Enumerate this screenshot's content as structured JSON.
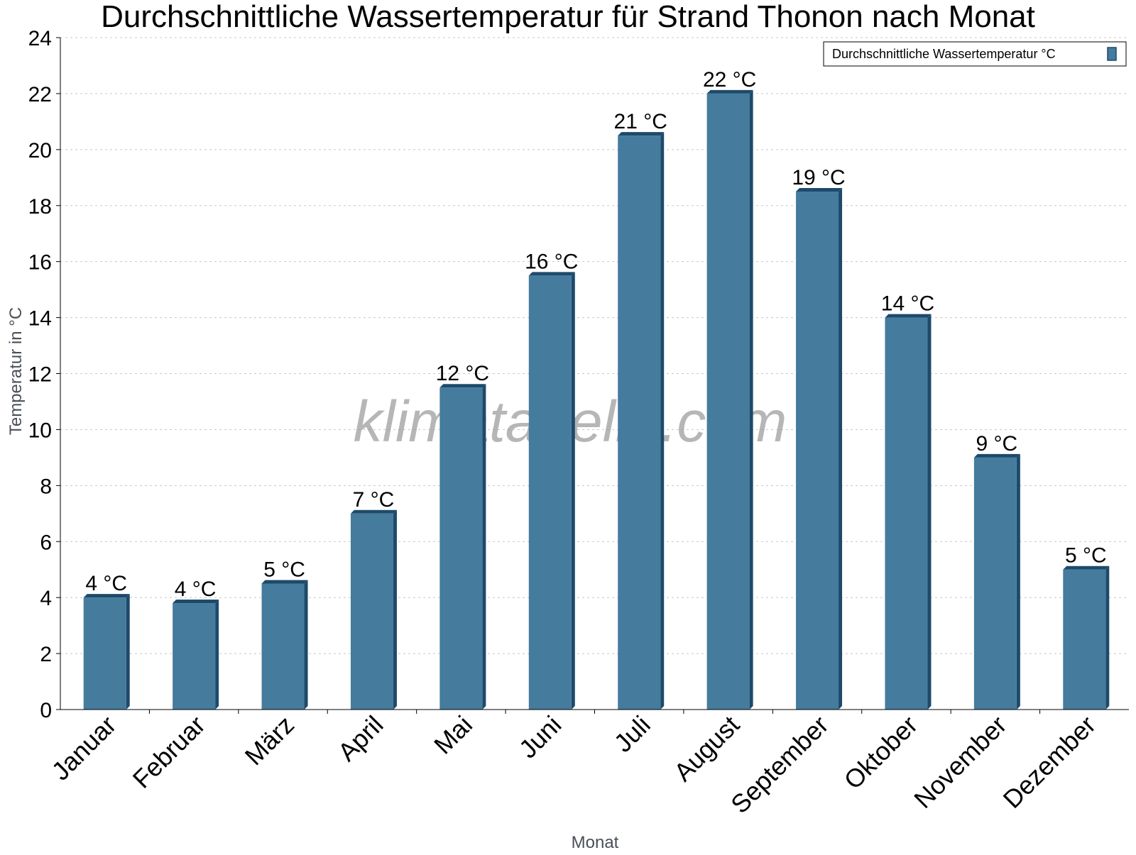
{
  "chart_data": {
    "type": "bar",
    "title": "Durchschnittliche Wassertemperatur für Strand Thonon nach Monat",
    "xlabel": "Monat",
    "ylabel": "Temperatur in °C",
    "ylim": [
      0,
      24
    ],
    "yticks": [
      "0",
      "2",
      "4",
      "6",
      "8",
      "10",
      "12",
      "14",
      "16",
      "18",
      "20",
      "22",
      "24"
    ],
    "grid": true,
    "legend_position": "top-right",
    "categories": [
      "Januar",
      "Februar",
      "März",
      "April",
      "Mai",
      "Juni",
      "Juli",
      "August",
      "September",
      "Oktober",
      "November",
      "Dezember"
    ],
    "series": [
      {
        "name": "Durchschnittliche Wassertemperatur °C",
        "color": "#457b9d",
        "edge_color": "#1d4a6b",
        "values": [
          4,
          3.8,
          4.5,
          7,
          11.5,
          15.5,
          20.5,
          22,
          18.5,
          14,
          9,
          5
        ],
        "labels": [
          "4 °C",
          "4 °C",
          "5 °C",
          "7 °C",
          "12 °C",
          "16 °C",
          "21 °C",
          "22 °C",
          "19 °C",
          "14 °C",
          "9 °C",
          "5 °C"
        ]
      }
    ]
  },
  "watermark": "klimatabelle.com"
}
